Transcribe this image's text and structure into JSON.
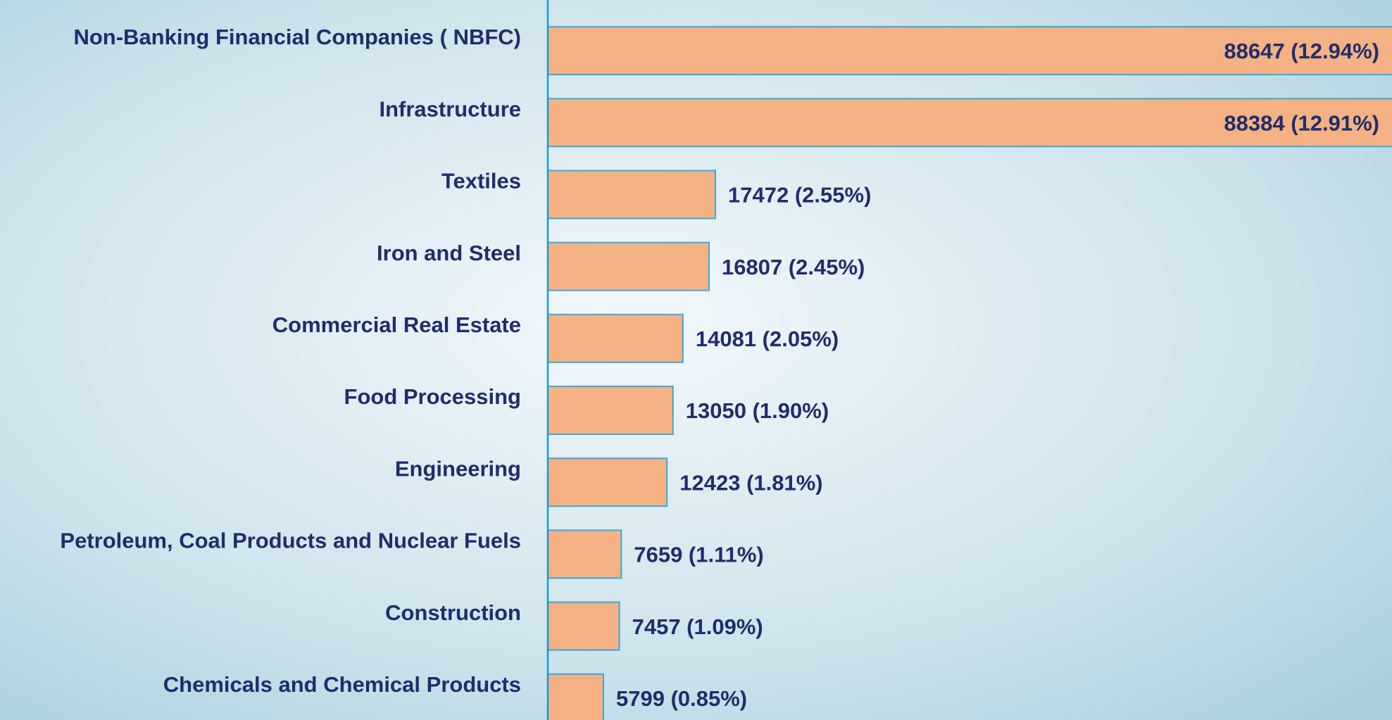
{
  "chart_data": {
    "type": "barh",
    "categories": [
      "Non-Banking Financial Companies ( NBFC)",
      "Infrastructure",
      "Textiles",
      "Iron and Steel",
      "Commercial Real Estate",
      "Food Processing",
      "Engineering",
      "Petroleum, Coal Products and Nuclear Fuels",
      "Construction",
      "Chemicals and Chemical Products"
    ],
    "values": [
      88647,
      88384,
      17472,
      16807,
      14081,
      13050,
      12423,
      7659,
      7457,
      5799
    ],
    "value_labels": [
      "88647 (12.94%)",
      "88384 (12.91%)",
      "17472 (2.55%)",
      "16807 (2.45%)",
      "14081 (2.05%)",
      "13050 (1.90%)",
      "12423 (1.81%)",
      "7659 (1.11%)",
      "7457 (1.09%)",
      "5799 (0.85%)"
    ],
    "color": "#f4b183",
    "xlim": [
      0,
      88000
    ]
  }
}
